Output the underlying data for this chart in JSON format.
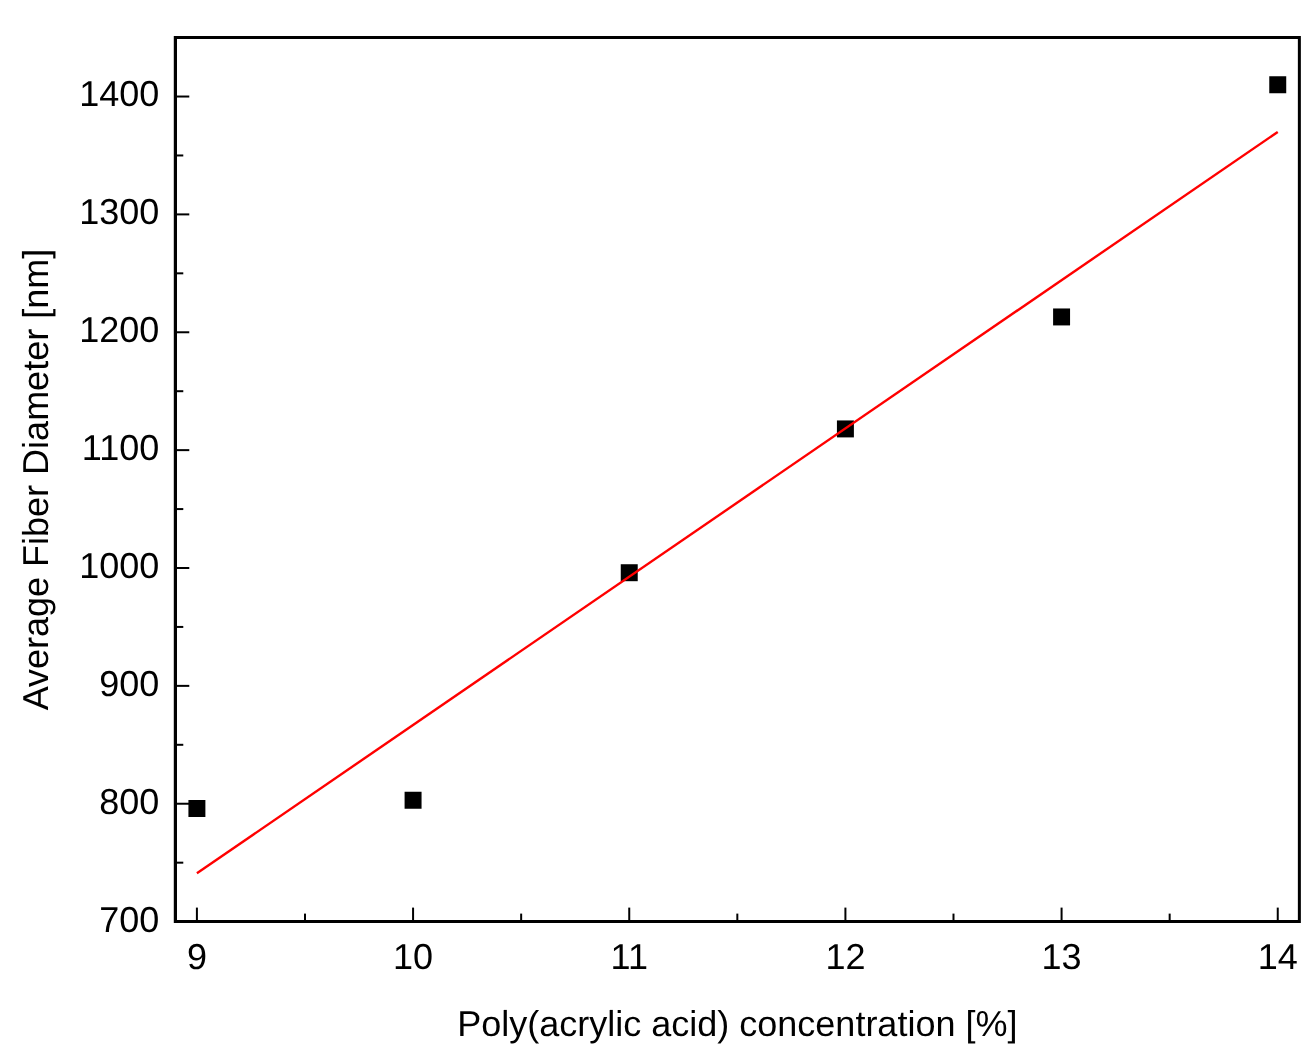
{
  "chart_data": {
    "type": "scatter",
    "xlabel": "Poly(acrylic acid) concentration [%]",
    "ylabel": "Average Fiber Diameter [nm]",
    "xlim": [
      8.9,
      14.1
    ],
    "ylim": [
      700,
      1450
    ],
    "xticks": [
      9,
      {
        "value": 9.5,
        "label": null
      },
      10,
      {
        "value": 10.5,
        "label": null
      },
      11,
      {
        "value": 11.5,
        "label": null
      },
      12,
      {
        "value": 12.5,
        "label": null
      },
      13,
      {
        "value": 13.5,
        "label": null
      },
      14
    ],
    "yticks": [
      700,
      {
        "value": 750,
        "label": null
      },
      800,
      {
        "value": 850,
        "label": null
      },
      900,
      {
        "value": 950,
        "label": null
      },
      1000,
      {
        "value": 1050,
        "label": null
      },
      1100,
      {
        "value": 1150,
        "label": null
      },
      1200,
      {
        "value": 1250,
        "label": null
      },
      1300,
      {
        "value": 1350,
        "label": null
      },
      1400
    ],
    "grid": false,
    "legend": false,
    "series": [
      {
        "type": "scatter",
        "color": "#000000",
        "marker": "square",
        "x": [
          9,
          10,
          11,
          12,
          13,
          14
        ],
        "values": [
          796,
          803,
          996,
          1118,
          1213,
          1410
        ]
      },
      {
        "type": "line",
        "color": "#ff0000",
        "marker": "none",
        "line_style": "solid",
        "x": [
          9,
          14
        ],
        "values": [
          741,
          1370
        ]
      }
    ]
  }
}
